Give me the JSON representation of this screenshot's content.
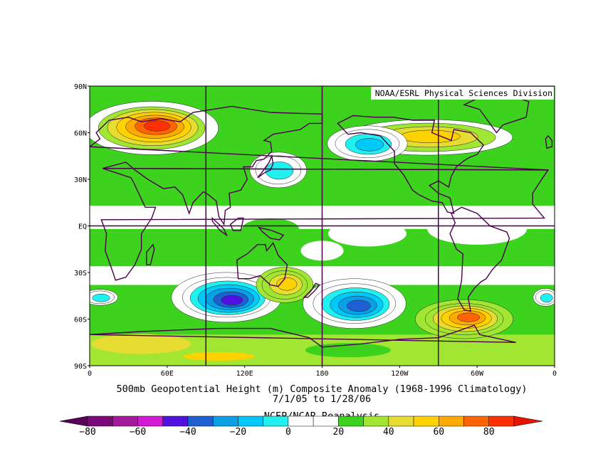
{
  "credit": "NOAA/ESRL Physical Sciences Division",
  "caption": {
    "line1": "500mb Geopotential Height (m) Composite Anomaly (1968-1996 Climatology)",
    "line2": "7/1/05  to 1/28/06",
    "line3": "NCEP/NCAR Reanalysis"
  },
  "map": {
    "lat_labels": [
      "90N",
      "60N",
      "30N",
      "EQ",
      "30S",
      "60S",
      "90S"
    ],
    "lon_labels": [
      "0",
      "60E",
      "120E",
      "180",
      "120W",
      "60W",
      "0"
    ],
    "grid_lines": "every 90 degrees longitude; 90N/EQ/90S latitude"
  },
  "colorbar": {
    "unit": "m",
    "tick_labels": [
      "-80",
      "-60",
      "-40",
      "-20",
      "0",
      "20",
      "40",
      "60",
      "80"
    ],
    "bins": [
      {
        "from": -80,
        "to": -70,
        "color": "#7a0a78"
      },
      {
        "from": -70,
        "to": -60,
        "color": "#a5189b"
      },
      {
        "from": -60,
        "to": -50,
        "color": "#d21ad2"
      },
      {
        "from": -50,
        "to": -40,
        "color": "#5010e0"
      },
      {
        "from": -40,
        "to": -30,
        "color": "#1e5fd2"
      },
      {
        "from": -30,
        "to": -20,
        "color": "#0aa0e6"
      },
      {
        "from": -20,
        "to": -10,
        "color": "#00c8f8"
      },
      {
        "from": -10,
        "to": 0,
        "color": "#20f0f0"
      },
      {
        "from": 0,
        "to": 10,
        "color": "#ffffff"
      },
      {
        "from": 10,
        "to": 20,
        "color": "#ffffff"
      },
      {
        "from": 20,
        "to": 30,
        "color": "#3cd21e"
      },
      {
        "from": 30,
        "to": 40,
        "color": "#a0e632"
      },
      {
        "from": 40,
        "to": 50,
        "color": "#e6dc32"
      },
      {
        "from": 50,
        "to": 60,
        "color": "#ffd200"
      },
      {
        "from": 60,
        "to": 70,
        "color": "#ffaa00"
      },
      {
        "from": 70,
        "to": 80,
        "color": "#ff6400"
      },
      {
        "from": 80,
        "to": 90,
        "color": "#ff3000"
      }
    ],
    "under_color": "#5a005a",
    "over_color": "#e61400"
  },
  "colors": {
    "field_background": "#3cd21e",
    "coastline": "#4a004a",
    "grid": "#4a004a"
  },
  "features": [
    {
      "name": "eurasia-positive-max",
      "lon": 48,
      "lat": 63,
      "level": 75
    },
    {
      "name": "north-canada-positive",
      "lon": 262,
      "lat": 58,
      "level": 45
    },
    {
      "name": "north-pacific-low",
      "lon": 215,
      "lat": 52,
      "level": -25
    },
    {
      "name": "japan-low",
      "lon": 145,
      "lat": 37,
      "level": -20
    },
    {
      "name": "south-indian-low",
      "lon": 106,
      "lat": -45,
      "level": -45
    },
    {
      "name": "south-pacific-low",
      "lon": 205,
      "lat": -50,
      "level": -35
    },
    {
      "name": "south-atlantic-high",
      "lon": 290,
      "lat": -58,
      "level": 65
    },
    {
      "name": "south-africa-low",
      "lon": 8,
      "lat": -45,
      "level": -15
    },
    {
      "name": "australia-high",
      "lon": 150,
      "lat": -37,
      "level": 40
    }
  ]
}
